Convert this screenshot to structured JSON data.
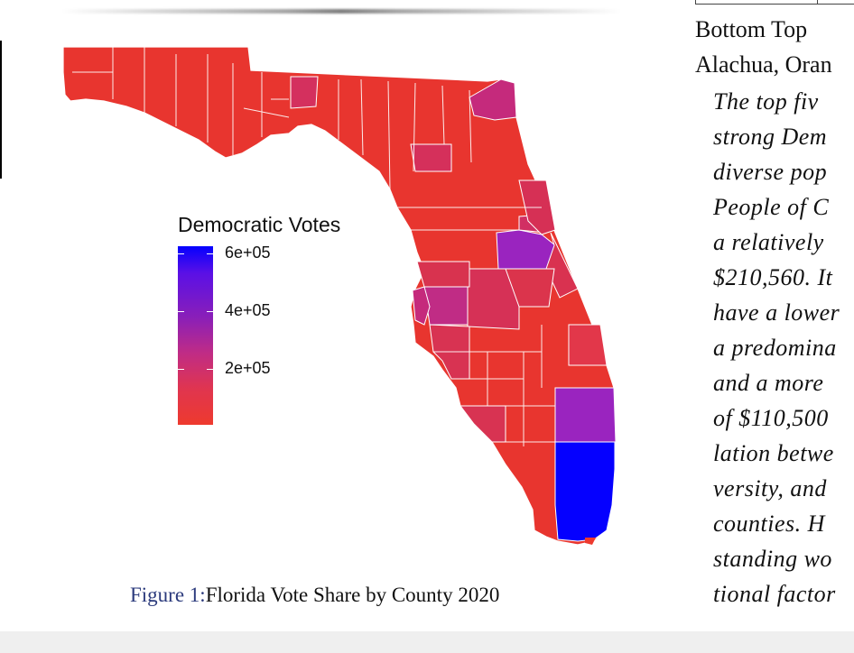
{
  "figure": {
    "legend": {
      "title": "Democratic Votes",
      "ticks": [
        "6e+05",
        "4e+05",
        "2e+05"
      ],
      "tick_values": [
        600000,
        400000,
        200000
      ],
      "color_low": "#ee3a2e",
      "color_mid": "#c02c85",
      "color_high": "#0500ff"
    },
    "caption": {
      "label": "Figure 1:",
      "text": "Florida Vote Share by County 2020"
    }
  },
  "right_column": {
    "header": "Bottom  Top",
    "row1": "Alachua, Oran",
    "paragraph_lines": [
      "The  top  fiv",
      "strong  Dem",
      "diverse  pop",
      "People  of  C",
      "a  relatively",
      "$210,560.  It",
      "have a lower",
      "a  predomina",
      "and  a  more",
      "of  $110,500",
      "lation  betwe",
      "versity,  and",
      "counties.   H",
      "standing  wo",
      "tional  factor"
    ]
  },
  "colors": {
    "democratic_low": "#ee3a2e",
    "democratic_mid": "#c02c85",
    "democratic_purple": "#9a24bf",
    "democratic_high": "#0500ff"
  }
}
